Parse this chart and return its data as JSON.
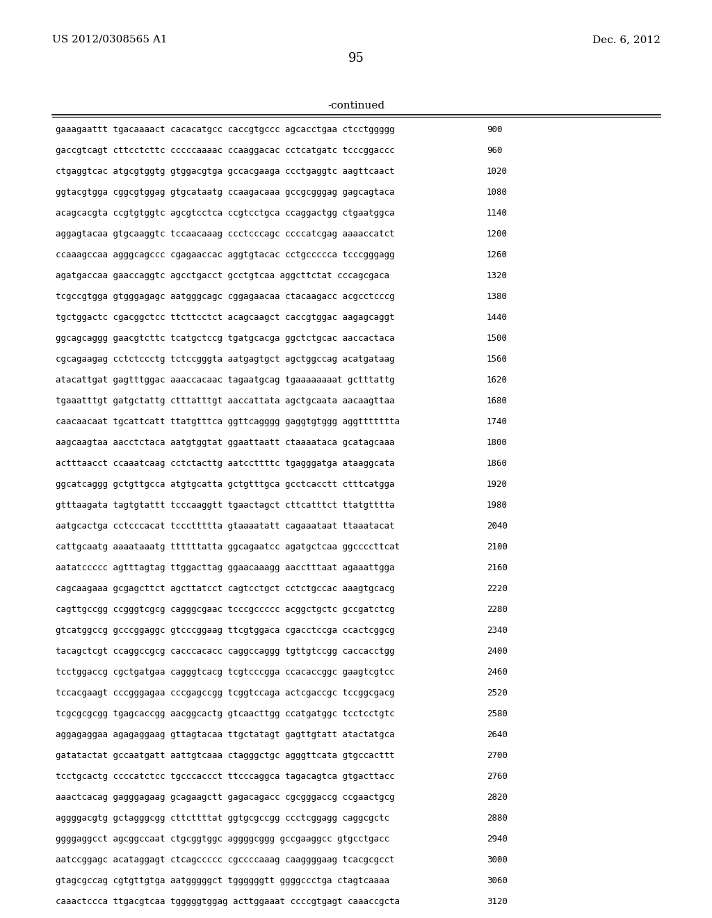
{
  "header_left": "US 2012/0308565 A1",
  "header_right": "Dec. 6, 2012",
  "page_number": "95",
  "continued_label": "-continued",
  "background_color": "#ffffff",
  "text_color": "#000000",
  "sequence_lines": [
    [
      "gaaagaattt tgacaaaact cacacatgcc caccgtgccc agcacctgaa ctcctggggg",
      "900"
    ],
    [
      "gaccgtcagt cttcctcttc cccccaaaac ccaaggacac cctcatgatc tcccggaccc",
      "960"
    ],
    [
      "ctgaggtcac atgcgtggtg gtggacgtga gccacgaaga ccctgaggtc aagttcaact",
      "1020"
    ],
    [
      "ggtacgtgga cggcgtggag gtgcataatg ccaagacaaa gccgcgggag gagcagtaca",
      "1080"
    ],
    [
      "acagcacgta ccgtgtggtc agcgtcctca ccgtcctgca ccaggactgg ctgaatggca",
      "1140"
    ],
    [
      "aggagtacaa gtgcaaggtc tccaacaaag ccctcccagc ccccatcgag aaaaccatct",
      "1200"
    ],
    [
      "ccaaagccaa agggcagccc cgagaaccac aggtgtacac cctgccccca tcccgggagg",
      "1260"
    ],
    [
      "agatgaccaa gaaccaggtc agcctgacct gcctgtcaa aggcttctat cccagcgaca",
      "1320"
    ],
    [
      "tcgccgtgga gtgggagagc aatgggcagc cggagaacaa ctacaagacc acgcctcccg",
      "1380"
    ],
    [
      "tgctggactc cgacggctcc ttcttcctct acagcaagct caccgtggac aagagcaggt",
      "1440"
    ],
    [
      "ggcagcaggg gaacgtcttc tcatgctccg tgatgcacga ggctctgcac aaccactaca",
      "1500"
    ],
    [
      "cgcagaagag cctctccctg tctccgggta aatgagtgct agctggccag acatgataag",
      "1560"
    ],
    [
      "atacattgat gagtttggac aaaccacaac tagaatgcag tgaaaaaaaat gctttattg",
      "1620"
    ],
    [
      "tgaaatttgt gatgctattg ctttatttgt aaccattata agctgcaata aacaagttaa",
      "1680"
    ],
    [
      "caacaacaat tgcattcatt ttatgtttca ggttcagggg gaggtgtggg aggttttttta",
      "1740"
    ],
    [
      "aagcaagtaa aacctctaca aatgtggtat ggaattaatt ctaaaataca gcatagcaaa",
      "1800"
    ],
    [
      "actttaacct ccaaatcaag cctctacttg aatccttttc tgagggatga ataaggcata",
      "1860"
    ],
    [
      "ggcatcaggg gctgttgcca atgtgcatta gctgtttgca gcctcacctt ctttcatgga",
      "1920"
    ],
    [
      "gtttaagata tagtgtattt tcccaaggtt tgaactagct cttcatttct ttatgtttta",
      "1980"
    ],
    [
      "aatgcactga cctcccacat tcccttttta gtaaaatatt cagaaataat ttaaatacat",
      "2040"
    ],
    [
      "cattgcaatg aaaataaatg ttttttatta ggcagaatcc agatgctcaa ggccccttcat",
      "2100"
    ],
    [
      "aatatccccc agtttagtag ttggacttag ggaacaaagg aacctttaat agaaattgga",
      "2160"
    ],
    [
      "cagcaagaaa gcgagcttct agcttatcct cagtcctgct cctctgccac aaagtgcacg",
      "2220"
    ],
    [
      "cagttgccgg ccgggtcgcg cagggcgaac tcccgccccc acggctgctc gccgatctcg",
      "2280"
    ],
    [
      "gtcatggccg gcccggaggc gtcccggaag ttcgtggaca cgacctccga ccactcggcg",
      "2340"
    ],
    [
      "tacagctcgt ccaggccgcg cacccacacc caggccaggg tgttgtccgg caccacctgg",
      "2400"
    ],
    [
      "tcctggaccg cgctgatgaa cagggtcacg tcgtcccgga ccacaccggc gaagtcgtcc",
      "2460"
    ],
    [
      "tccacgaagt cccgggagaa cccgagccgg tcggtccaga actcgaccgc tccggcgacg",
      "2520"
    ],
    [
      "tcgcgcgcgg tgagcaccgg aacggcactg gtcaacttgg ccatgatggc tcctcctgtc",
      "2580"
    ],
    [
      "aggagaggaa agagaggaag gttagtacaa ttgctatagt gagttgtatt atactatgca",
      "2640"
    ],
    [
      "gatatactat gccaatgatt aattgtcaaa ctagggctgc agggttcata gtgccacttt",
      "2700"
    ],
    [
      "tcctgcactg ccccatctcc tgcccaccct ttcccaggca tagacagtca gtgacttacc",
      "2760"
    ],
    [
      "aaactcacag gagggagaag gcagaagctt gagacagacc cgcgggaccg ccgaactgcg",
      "2820"
    ],
    [
      "aggggacgtg gctagggcgg cttcttttat ggtgcgccgg ccctcggagg caggcgctc",
      "2880"
    ],
    [
      "ggggaggcct agcggccaat ctgcggtggc aggggcggg gccgaaggcc gtgcctgacc",
      "2940"
    ],
    [
      "aatccggagc acataggagt ctcagccccc cgccccaaag caaggggaag tcacgcgcct",
      "3000"
    ],
    [
      "gtagcgccag cgtgttgtga aatgggggct tggggggtt ggggccctga ctagtcaaaa",
      "3060"
    ],
    [
      "caaactccca ttgacgtcaa tgggggtggag acttggaaat ccccgtgagt caaaccgcta",
      "3120"
    ]
  ]
}
